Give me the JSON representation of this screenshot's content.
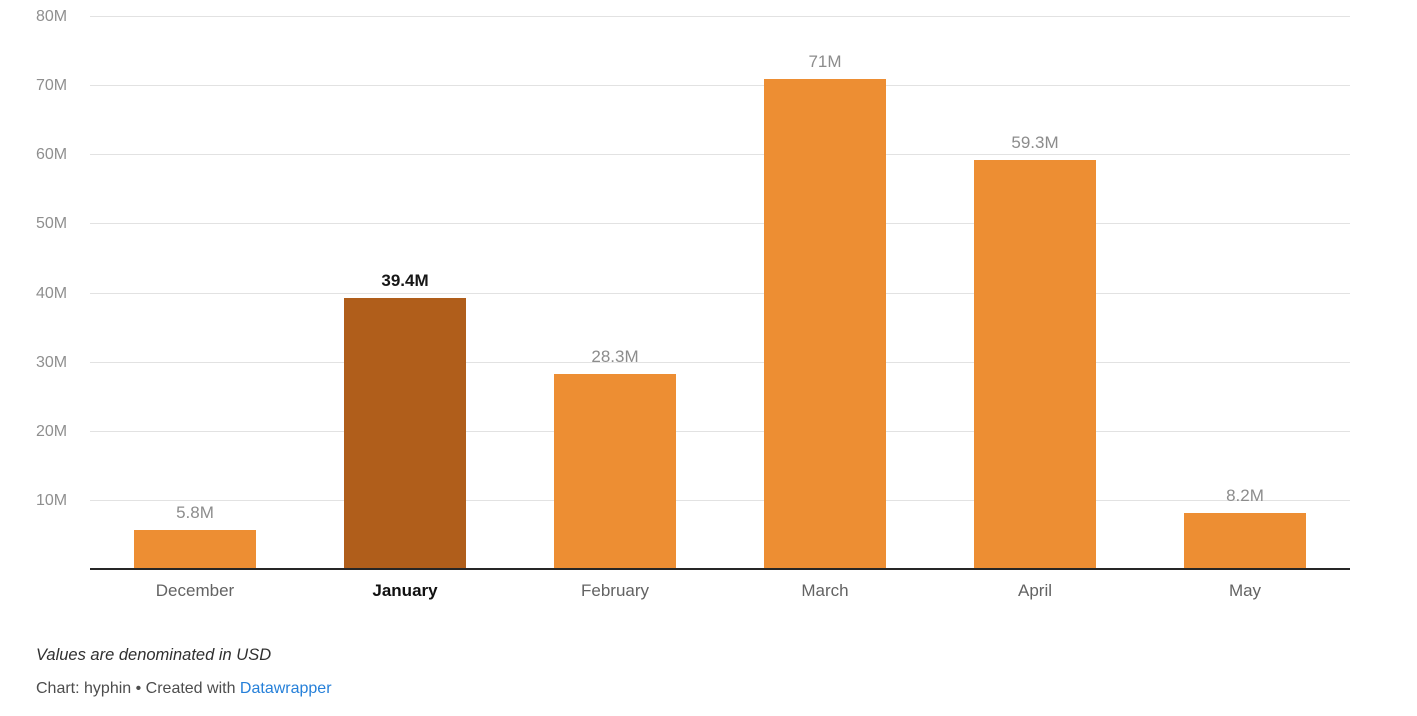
{
  "chart_data": {
    "type": "bar",
    "categories": [
      "December",
      "January",
      "February",
      "March",
      "April",
      "May"
    ],
    "values": [
      5.8,
      39.4,
      28.3,
      71,
      59.3,
      8.2
    ],
    "value_labels": [
      "5.8M",
      "39.4M",
      "28.3M",
      "71M",
      "59.3M",
      "8.2M"
    ],
    "highlight_index": 1,
    "title": "",
    "xlabel": "",
    "ylabel": "",
    "ylim": [
      0,
      80
    ],
    "yticks": [
      10,
      20,
      30,
      40,
      50,
      60,
      70,
      80
    ],
    "ytick_labels": [
      "10M",
      "20M",
      "30M",
      "40M",
      "50M",
      "60M",
      "70M",
      "80M"
    ],
    "grid": true,
    "legend": "none",
    "bar_color": "#ED8E33",
    "highlight_color": "#B05E1B"
  },
  "colors": {
    "bar": "#ED8E33",
    "highlight_bar": "#B05E1B",
    "gridline": "#e2e2e2",
    "baseline": "#262626",
    "link": "#2680d9"
  },
  "footer": {
    "note": "Values are denominated in USD",
    "byline_prefix": "Chart: hyphin • Created with ",
    "link_label": "Datawrapper"
  }
}
